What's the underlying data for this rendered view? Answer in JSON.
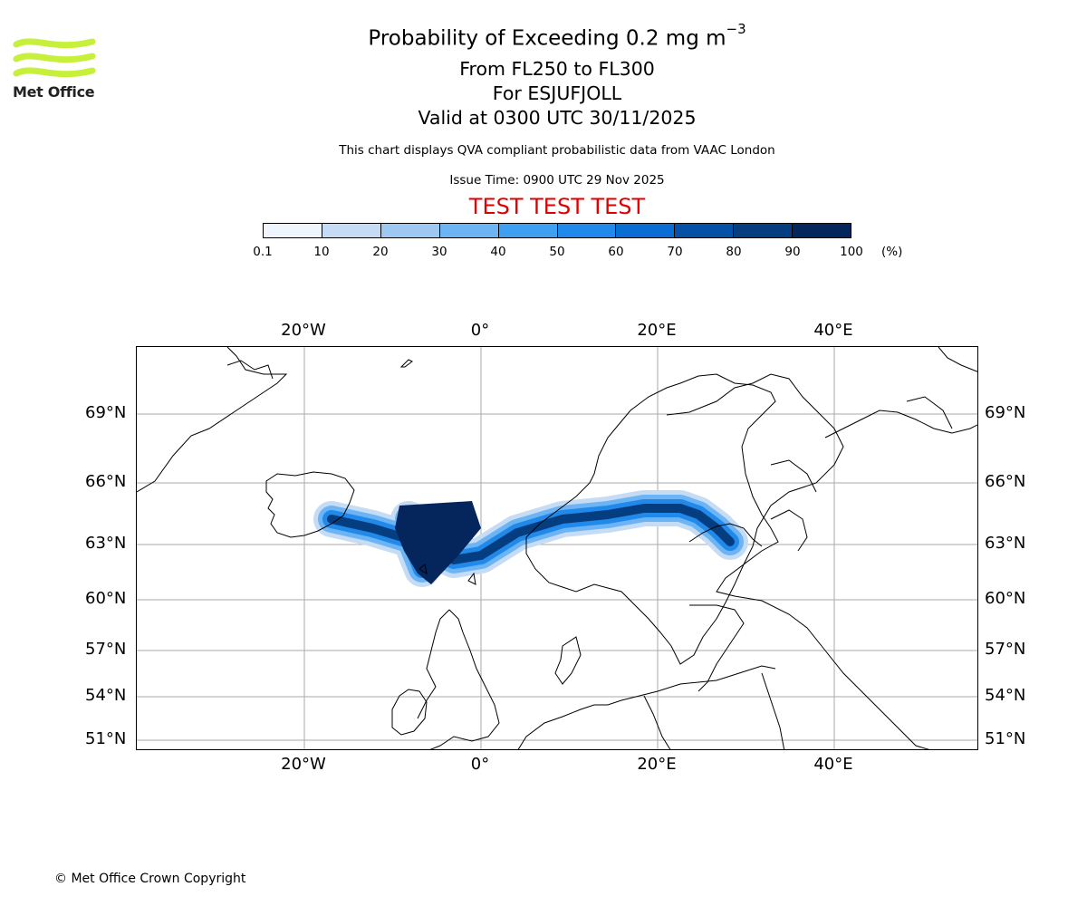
{
  "header": {
    "logo_text": "Met Office",
    "title_main": "Probability of Exceeding 0.2 mg m",
    "title_sup": "−3",
    "line_levels": "From FL250 to FL300",
    "line_volcano": "For ESJUFJOLL",
    "line_valid": "Valid at 0300 UTC 30/11/2025",
    "disclaimer": "This chart displays QVA compliant probabilistic data from VAAC London",
    "issue_time": "Issue Time: 0900 UTC 29 Nov 2025",
    "test_banner": "TEST TEST TEST"
  },
  "colorbar": {
    "labels": [
      "0.1",
      "10",
      "20",
      "30",
      "40",
      "50",
      "60",
      "70",
      "80",
      "90",
      "100"
    ],
    "unit": "(%)",
    "colors": [
      "#eef5fc",
      "#c6dcf5",
      "#9dc8f2",
      "#6cb4f3",
      "#3f9ff0",
      "#2189e9",
      "#0a6dd4",
      "#0651a8",
      "#053e80",
      "#04265c"
    ]
  },
  "map": {
    "lon_labels": [
      "20°W",
      "0°",
      "20°E",
      "40°E"
    ],
    "lat_labels": [
      "69°N",
      "66°N",
      "63°N",
      "60°N",
      "57°N",
      "54°N",
      "51°N"
    ],
    "grid_color": "#aaaaaa",
    "plume_bands_percent": [
      0.1,
      30,
      60,
      90
    ]
  },
  "footer": {
    "copyright": "© Met Office Crown Copyright"
  }
}
